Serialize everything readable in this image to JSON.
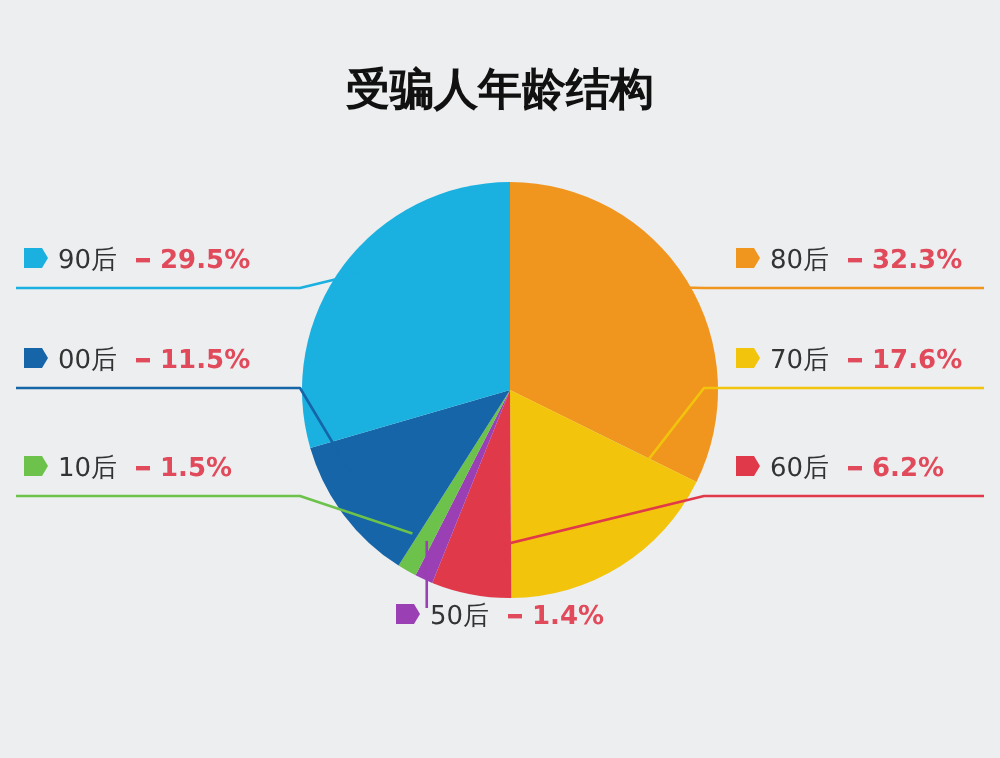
{
  "chart_data": {
    "type": "pie",
    "title": "受骗人年龄结构",
    "categories": [
      "80后",
      "70后",
      "60后",
      "50后",
      "10后",
      "00后",
      "90后"
    ],
    "values": [
      32.3,
      17.6,
      6.2,
      1.4,
      1.5,
      11.5,
      29.5
    ],
    "value_labels": [
      "32.3%",
      "17.6%",
      "6.2%",
      "1.4%",
      "1.5%",
      "11.5%",
      "29.5%"
    ],
    "colors": [
      "#f0961e",
      "#f2c40c",
      "#e0394a",
      "#9b3fb5",
      "#6cc24a",
      "#1565a8",
      "#1ab0e0"
    ],
    "legend": "left"
  }
}
